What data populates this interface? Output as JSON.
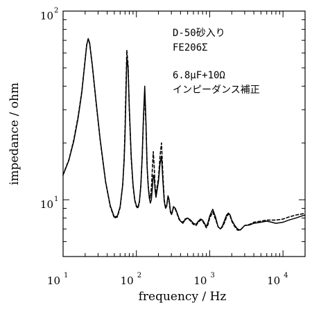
{
  "chart_data": {
    "type": "line",
    "xlabel": "frequency / Hz",
    "ylabel": "impedance / ohm",
    "xscale": "log",
    "yscale": "log",
    "xlim": [
      10,
      20000
    ],
    "ylim": [
      5,
      100
    ],
    "x_ticks": [
      {
        "base": "10",
        "exp": "1",
        "value": 10
      },
      {
        "base": "10",
        "exp": "2",
        "value": 100
      },
      {
        "base": "10",
        "exp": "3",
        "value": 1000
      },
      {
        "base": "10",
        "exp": "4",
        "value": 10000
      }
    ],
    "y_ticks": [
      {
        "base": "10",
        "exp": "1",
        "value": 10
      },
      {
        "base": "10",
        "exp": "2",
        "value": 100
      }
    ],
    "annotations": [
      "D-50砂入り",
      "FE206Σ",
      "6.8μF+10Ω",
      "インピーダンス補正"
    ],
    "series": [
      {
        "style": "solid",
        "x": [
          10,
          12,
          14,
          16,
          18,
          20,
          21,
          22,
          23,
          25,
          28,
          32,
          38,
          44,
          50,
          55,
          60,
          65,
          68,
          70,
          72,
          74,
          77,
          80,
          85,
          90,
          95,
          100,
          105,
          110,
          115,
          120,
          125,
          130,
          135,
          140,
          145,
          150,
          155,
          160,
          165,
          170,
          175,
          180,
          185,
          190,
          200,
          210,
          220,
          230,
          240,
          250,
          260,
          270,
          280,
          290,
          300,
          310,
          320,
          340,
          360,
          380,
          400,
          430,
          460,
          500,
          550,
          600,
          650,
          700,
          750,
          800,
          850,
          900,
          950,
          1000,
          1100,
          1200,
          1300,
          1400,
          1500,
          1600,
          1700,
          1800,
          1900,
          2000,
          2200,
          2400,
          2600,
          2800,
          3000,
          3500,
          4000,
          5000,
          6000,
          7000,
          8000,
          10000,
          12000,
          15000,
          18000,
          20000
        ],
        "y": [
          13.5,
          16.2,
          20.5,
          27.0,
          37.0,
          55.0,
          66.0,
          71.5,
          68.0,
          52.0,
          34.0,
          21.0,
          12.5,
          9.3,
          8.1,
          8.2,
          9.2,
          12.0,
          16.0,
          22.0,
          35.0,
          56.0,
          50.0,
          31.0,
          17.0,
          12.0,
          10.0,
          9.3,
          9.1,
          9.8,
          12.0,
          17.0,
          28.0,
          40.0,
          26.0,
          15.0,
          11.8,
          10.2,
          9.6,
          10.0,
          11.5,
          13.5,
          13.0,
          11.2,
          10.3,
          11.0,
          12.5,
          15.5,
          17.0,
          12.5,
          9.8,
          9.0,
          9.4,
          10.5,
          10.0,
          8.8,
          8.4,
          8.7,
          9.2,
          9.0,
          8.5,
          8.0,
          7.7,
          7.5,
          7.8,
          8.0,
          7.8,
          7.5,
          7.4,
          7.7,
          7.9,
          7.8,
          7.5,
          7.2,
          7.6,
          8.2,
          8.9,
          8.1,
          7.2,
          7.0,
          7.3,
          7.8,
          8.3,
          8.5,
          8.3,
          7.8,
          7.3,
          7.0,
          6.9,
          7.1,
          7.3,
          7.35,
          7.5,
          7.6,
          7.7,
          7.6,
          7.5,
          7.6,
          7.8,
          8.0,
          8.2,
          8.3
        ]
      },
      {
        "style": "dashed",
        "x": [
          10,
          12,
          14,
          16,
          18,
          20,
          21,
          22,
          23,
          25,
          28,
          32,
          38,
          44,
          50,
          55,
          60,
          65,
          68,
          70,
          72,
          74,
          77,
          80,
          85,
          90,
          95,
          100,
          105,
          110,
          115,
          120,
          125,
          130,
          135,
          140,
          145,
          150,
          155,
          160,
          165,
          170,
          175,
          180,
          185,
          190,
          200,
          210,
          220,
          230,
          240,
          250,
          260,
          270,
          280,
          290,
          300,
          310,
          320,
          340,
          360,
          380,
          400,
          430,
          460,
          500,
          550,
          600,
          650,
          700,
          750,
          800,
          850,
          900,
          950,
          1000,
          1100,
          1200,
          1300,
          1400,
          1500,
          1600,
          1700,
          1800,
          1900,
          2000,
          2200,
          2400,
          2600,
          2800,
          3000,
          3500,
          4000,
          5000,
          6000,
          7000,
          8000,
          10000,
          12000,
          15000,
          18000,
          20000
        ],
        "y": [
          13.6,
          16.3,
          20.8,
          27.5,
          37.5,
          55.5,
          66.5,
          71.0,
          67.5,
          51.5,
          33.5,
          20.8,
          12.4,
          9.2,
          8.0,
          8.1,
          9.1,
          11.9,
          16.5,
          24.0,
          40.0,
          62.0,
          52.0,
          30.0,
          16.5,
          11.8,
          9.9,
          9.2,
          9.0,
          9.7,
          11.8,
          16.8,
          27.0,
          36.0,
          25.0,
          15.0,
          11.8,
          10.5,
          10.2,
          11.5,
          14.5,
          18.0,
          15.0,
          11.8,
          10.8,
          11.5,
          13.0,
          17.0,
          20.0,
          13.5,
          10.0,
          9.0,
          9.3,
          10.3,
          9.8,
          8.7,
          8.3,
          8.6,
          9.1,
          8.9,
          8.4,
          7.9,
          7.7,
          7.6,
          7.9,
          8.0,
          7.7,
          7.4,
          7.3,
          7.6,
          7.8,
          7.7,
          7.4,
          7.1,
          7.4,
          8.0,
          8.6,
          7.9,
          7.2,
          7.0,
          7.2,
          7.6,
          8.1,
          8.4,
          8.2,
          7.7,
          7.2,
          6.9,
          6.9,
          7.1,
          7.3,
          7.4,
          7.6,
          7.7,
          7.8,
          7.8,
          7.8,
          7.9,
          8.1,
          8.3,
          8.4,
          8.5
        ]
      }
    ]
  }
}
